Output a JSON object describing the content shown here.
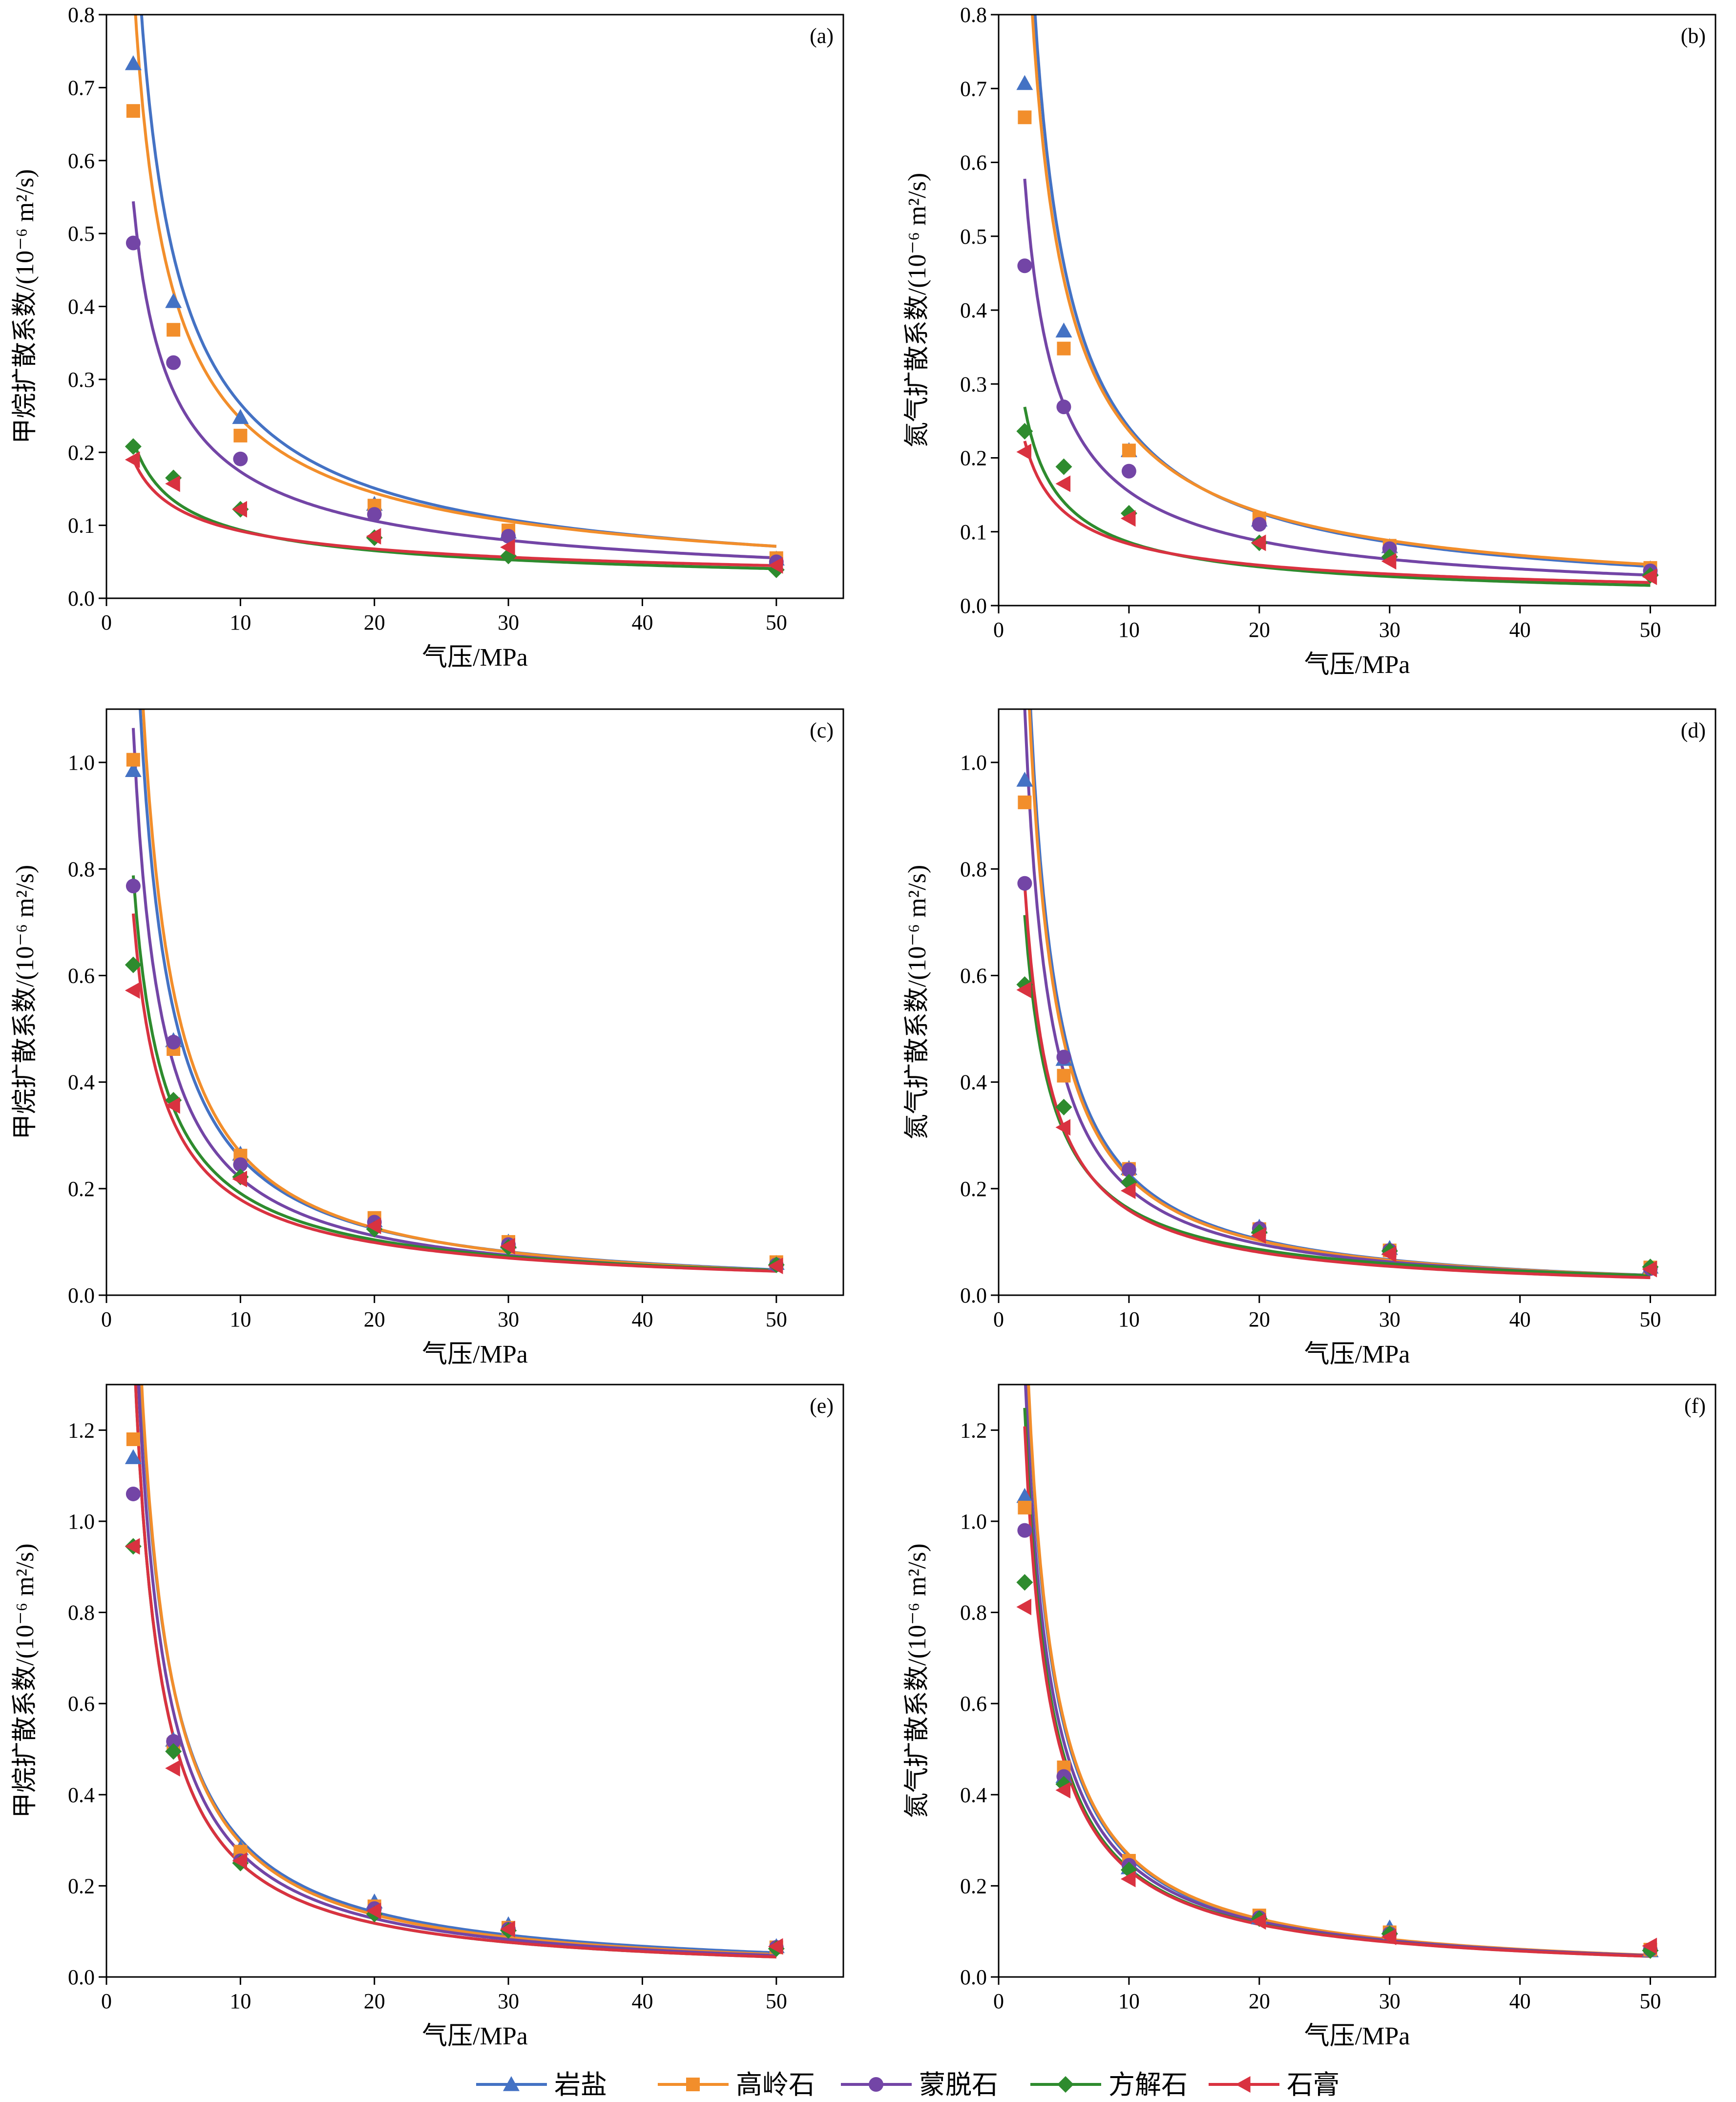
{
  "series_meta": [
    {
      "name": "岩盐",
      "color": "#4472c4",
      "marker": "triangle-up"
    },
    {
      "name": "高岭石",
      "color": "#f28e2b",
      "marker": "square"
    },
    {
      "name": "蒙脱石",
      "color": "#7345a6",
      "marker": "circle"
    },
    {
      "name": "方解石",
      "color": "#2e8b2e",
      "marker": "diamond"
    },
    {
      "name": "石膏",
      "color": "#d93240",
      "marker": "triangle-left"
    }
  ],
  "chart_data": [
    {
      "type": "scatter",
      "panel": "(a)",
      "xlabel": "气压/MPa",
      "ylabel": "甲烷扩散系数/(10⁻⁶ m²/s)",
      "xlim": [
        0,
        55
      ],
      "ylim": [
        0,
        0.8
      ],
      "xticks": [
        0,
        10,
        20,
        30,
        40,
        50
      ],
      "yticks": [
        0.0,
        0.1,
        0.2,
        0.3,
        0.4,
        0.5,
        0.6,
        0.7,
        0.8
      ],
      "x": [
        2,
        5,
        10,
        20,
        30,
        50
      ],
      "series": [
        {
          "name": "岩盐",
          "values": [
            0.733,
            0.407,
            0.248,
            0.129,
            0.091,
            0.054
          ],
          "fit": [
            1.76,
            -0.82
          ]
        },
        {
          "name": "高岭石",
          "values": [
            0.668,
            0.368,
            0.223,
            0.127,
            0.093,
            0.055
          ],
          "fit": [
            1.45,
            -0.77
          ]
        },
        {
          "name": "蒙脱石",
          "values": [
            0.487,
            0.323,
            0.191,
            0.115,
            0.085,
            0.05
          ],
          "fit": [
            0.89,
            -0.71
          ]
        },
        {
          "name": "方解石",
          "values": [
            0.208,
            0.165,
            0.122,
            0.083,
            0.058,
            0.039
          ],
          "fit": [
            0.31,
            -0.52
          ]
        },
        {
          "name": "石膏",
          "values": [
            0.19,
            0.157,
            0.122,
            0.085,
            0.07,
            0.045
          ],
          "fit": [
            0.26,
            -0.45
          ]
        }
      ]
    },
    {
      "type": "scatter",
      "panel": "(b)",
      "xlabel": "气压/MPa",
      "ylabel": "氮气扩散系数/(10⁻⁶ m²/s)",
      "xlim": [
        0,
        55
      ],
      "ylim": [
        0,
        0.8
      ],
      "xticks": [
        0,
        10,
        20,
        30,
        40,
        50
      ],
      "yticks": [
        0.0,
        0.1,
        0.2,
        0.3,
        0.4,
        0.5,
        0.6,
        0.7,
        0.8
      ],
      "x": [
        2,
        5,
        10,
        20,
        30,
        50
      ],
      "series": [
        {
          "name": "岩盐",
          "values": [
            0.707,
            0.372,
            0.21,
            0.116,
            0.08,
            0.05
          ],
          "fit": [
            2.1,
            -0.94
          ]
        },
        {
          "name": "高岭石",
          "values": [
            0.661,
            0.348,
            0.21,
            0.118,
            0.081,
            0.051
          ],
          "fit": [
            1.88,
            -0.9
          ]
        },
        {
          "name": "蒙脱石",
          "values": [
            0.46,
            0.269,
            0.182,
            0.11,
            0.077,
            0.047
          ],
          "fit": [
            1.02,
            -0.82
          ]
        },
        {
          "name": "方解石",
          "values": [
            0.236,
            0.188,
            0.125,
            0.085,
            0.066,
            0.041
          ],
          "fit": [
            0.44,
            -0.71
          ]
        },
        {
          "name": "石膏",
          "values": [
            0.208,
            0.165,
            0.118,
            0.085,
            0.06,
            0.039
          ],
          "fit": [
            0.34,
            -0.61
          ]
        }
      ]
    },
    {
      "type": "scatter",
      "panel": "(c)",
      "xlabel": "气压/MPa",
      "ylabel": "甲烷扩散系数/(10⁻⁶ m²/s)",
      "xlim": [
        0,
        55
      ],
      "ylim": [
        0,
        1.1
      ],
      "xticks": [
        0,
        10,
        20,
        30,
        40,
        50
      ],
      "yticks": [
        0.0,
        0.2,
        0.4,
        0.6,
        0.8,
        1.0
      ],
      "x": [
        2,
        5,
        10,
        20,
        30,
        50
      ],
      "series": [
        {
          "name": "岩盐",
          "values": [
            0.985,
            0.478,
            0.265,
            0.14,
            0.1,
            0.06
          ],
          "fit": [
            2.9,
            -1.05
          ]
        },
        {
          "name": "高岭石",
          "values": [
            1.005,
            0.462,
            0.262,
            0.145,
            0.1,
            0.062
          ],
          "fit": [
            3.3,
            -1.09
          ]
        },
        {
          "name": "蒙脱石",
          "values": [
            0.768,
            0.475,
            0.245,
            0.137,
            0.095,
            0.057
          ],
          "fit": [
            2.1,
            -0.98
          ]
        },
        {
          "name": "方解石",
          "values": [
            0.62,
            0.366,
            0.222,
            0.124,
            0.09,
            0.057
          ],
          "fit": [
            1.45,
            -0.88
          ]
        },
        {
          "name": "石膏",
          "values": [
            0.572,
            0.356,
            0.218,
            0.13,
            0.092,
            0.055
          ],
          "fit": [
            1.3,
            -0.86
          ]
        }
      ]
    },
    {
      "type": "scatter",
      "panel": "(d)",
      "xlabel": "气压/MPa",
      "ylabel": "氮气扩散系数/(10⁻⁶ m²/s)",
      "xlim": [
        0,
        55
      ],
      "ylim": [
        0,
        1.1
      ],
      "xticks": [
        0,
        10,
        20,
        30,
        40,
        50
      ],
      "yticks": [
        0.0,
        0.2,
        0.4,
        0.6,
        0.8,
        1.0
      ],
      "x": [
        2,
        5,
        10,
        20,
        30,
        50
      ],
      "series": [
        {
          "name": "岩盐",
          "values": [
            0.967,
            0.443,
            0.238,
            0.128,
            0.088,
            0.053
          ],
          "fit": [
            3.0,
            -1.12
          ]
        },
        {
          "name": "高岭石",
          "values": [
            0.925,
            0.412,
            0.237,
            0.124,
            0.084,
            0.052
          ],
          "fit": [
            2.85,
            -1.11
          ]
        },
        {
          "name": "蒙脱石",
          "values": [
            0.773,
            0.447,
            0.235,
            0.125,
            0.084,
            0.05
          ],
          "fit": [
            2.3,
            -1.06
          ]
        },
        {
          "name": "方解石",
          "values": [
            0.583,
            0.353,
            0.212,
            0.118,
            0.083,
            0.053
          ],
          "fit": [
            1.35,
            -0.92
          ]
        },
        {
          "name": "石膏",
          "values": [
            0.573,
            0.315,
            0.196,
            0.112,
            0.077,
            0.049
          ],
          "fit": [
            1.52,
            -0.98
          ]
        }
      ]
    },
    {
      "type": "scatter",
      "panel": "(e)",
      "xlabel": "气压/MPa",
      "ylabel": "甲烷扩散系数/(10⁻⁶ m²/s)",
      "xlim": [
        0,
        55
      ],
      "ylim": [
        0,
        1.3
      ],
      "xticks": [
        0,
        10,
        20,
        30,
        40,
        50
      ],
      "yticks": [
        0.0,
        0.2,
        0.4,
        0.6,
        0.8,
        1.0,
        1.2
      ],
      "x": [
        2,
        5,
        10,
        20,
        30,
        50
      ],
      "series": [
        {
          "name": "岩盐",
          "values": [
            1.14,
            0.52,
            0.282,
            0.165,
            0.115,
            0.067
          ],
          "fit": [
            3.62,
            -1.08
          ]
        },
        {
          "name": "高岭石",
          "values": [
            1.18,
            0.51,
            0.275,
            0.155,
            0.108,
            0.065
          ],
          "fit": [
            3.8,
            -1.11
          ]
        },
        {
          "name": "蒙脱石",
          "values": [
            1.06,
            0.517,
            0.255,
            0.15,
            0.105,
            0.065
          ],
          "fit": [
            3.36,
            -1.09
          ]
        },
        {
          "name": "方解石",
          "values": [
            0.945,
            0.495,
            0.25,
            0.138,
            0.102,
            0.062
          ],
          "fit": [
            3.0,
            -1.08
          ]
        },
        {
          "name": "石膏",
          "values": [
            0.945,
            0.458,
            0.255,
            0.145,
            0.105,
            0.067
          ],
          "fit": [
            3.0,
            -1.08
          ]
        }
      ]
    },
    {
      "type": "scatter",
      "panel": "(f)",
      "xlabel": "气压/MPa",
      "ylabel": "氮气扩散系数/(10⁻⁶ m²/s)",
      "xlim": [
        0,
        55
      ],
      "ylim": [
        0,
        1.3
      ],
      "xticks": [
        0,
        10,
        20,
        30,
        40,
        50
      ],
      "yticks": [
        0.0,
        0.2,
        0.4,
        0.6,
        0.8,
        1.0,
        1.2
      ],
      "x": [
        2,
        5,
        10,
        20,
        30,
        50
      ],
      "series": [
        {
          "name": "岩盐",
          "values": [
            1.055,
            0.44,
            0.24,
            0.13,
            0.108,
            0.058
          ],
          "fit": [
            3.1,
            -1.07
          ]
        },
        {
          "name": "高岭石",
          "values": [
            1.03,
            0.46,
            0.255,
            0.135,
            0.098,
            0.06
          ],
          "fit": [
            3.15,
            -1.07
          ]
        },
        {
          "name": "蒙脱石",
          "values": [
            0.98,
            0.44,
            0.245,
            0.13,
            0.095,
            0.06
          ],
          "fit": [
            2.75,
            -1.04
          ]
        },
        {
          "name": "方解石",
          "values": [
            0.866,
            0.423,
            0.235,
            0.128,
            0.095,
            0.058
          ],
          "fit": [
            2.55,
            -1.03
          ]
        },
        {
          "name": "石膏",
          "values": [
            0.812,
            0.41,
            0.215,
            0.122,
            0.088,
            0.068
          ],
          "fit": [
            2.45,
            -1.02
          ]
        }
      ]
    }
  ]
}
